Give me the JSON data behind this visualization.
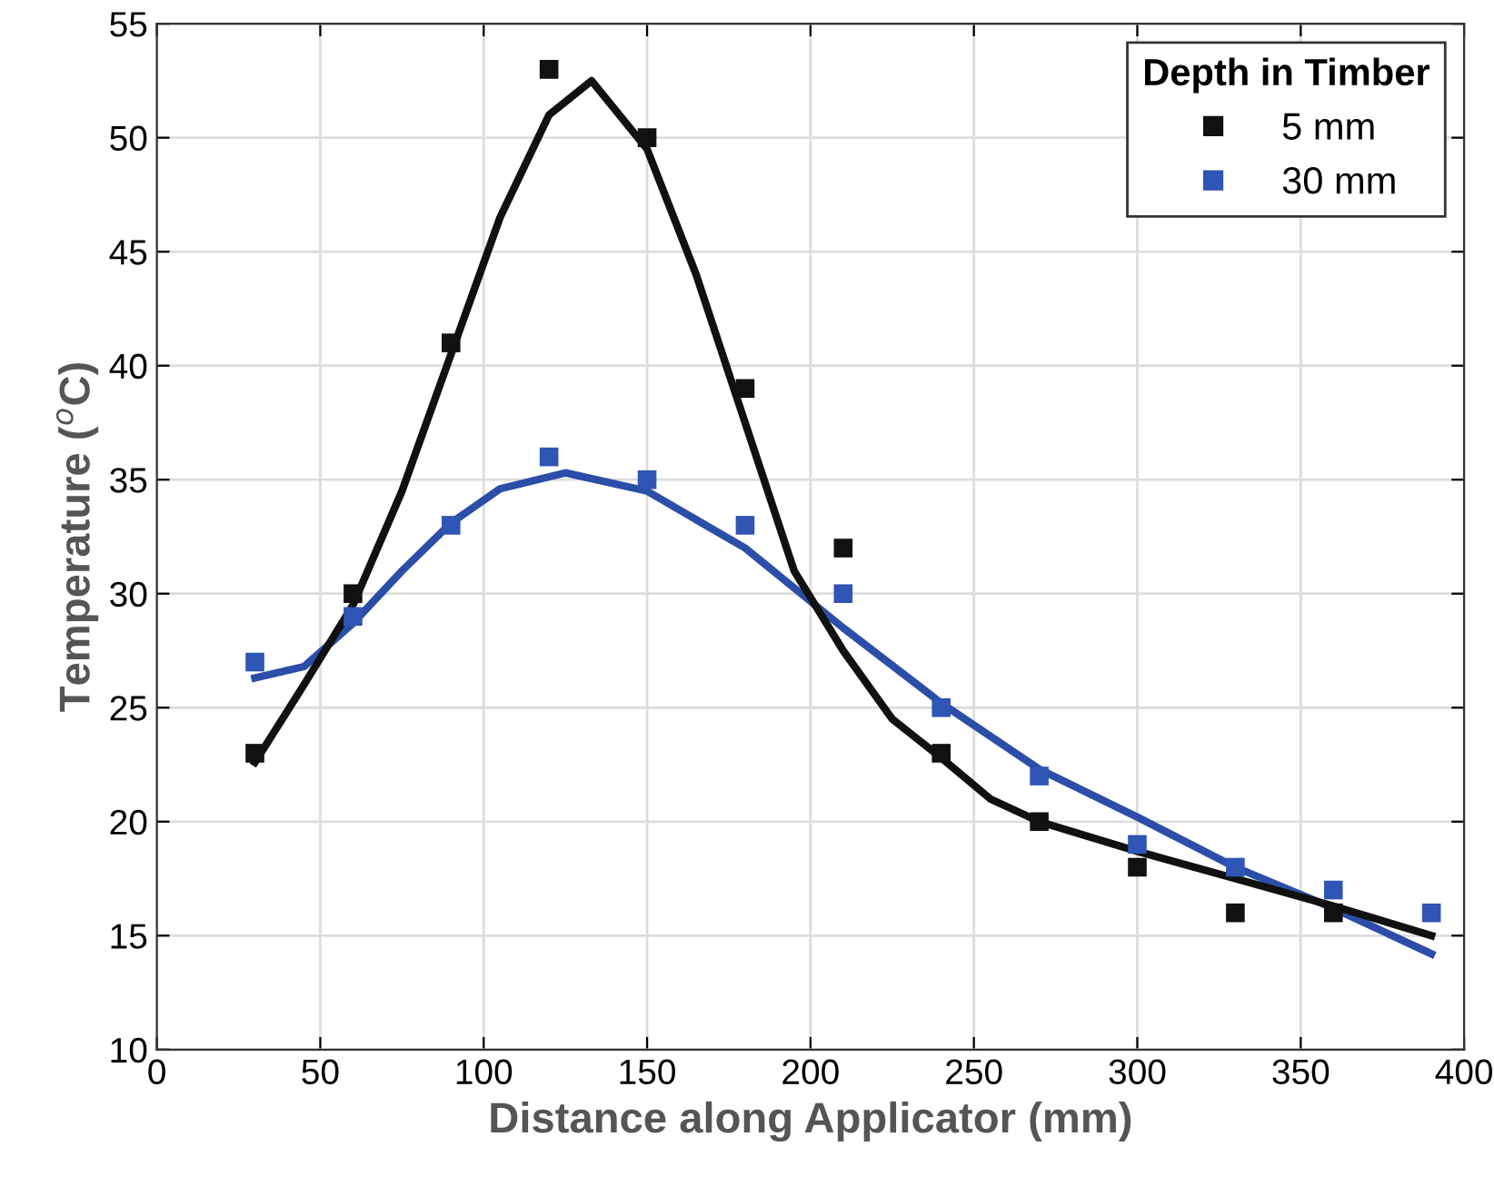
{
  "chart_data": {
    "type": "scatter",
    "xlabel": "Distance along Applicator (mm)",
    "ylabel": "Temperature ($^{o}$C)",
    "legend_title": "Depth in Timber",
    "legend": "top right",
    "grid": true,
    "marker": "square",
    "xlim": [
      0,
      400
    ],
    "ylim": [
      10,
      55
    ],
    "xticks": [
      0,
      50,
      100,
      150,
      200,
      250,
      300,
      350,
      400
    ],
    "yticks": [
      10,
      15,
      20,
      25,
      30,
      35,
      40,
      45,
      50,
      55
    ],
    "series": [
      {
        "type": "line",
        "color": "#2b4ea8",
        "x": [
          30,
          45,
          60,
          75,
          90,
          105,
          125,
          150,
          180,
          210,
          240,
          270,
          300,
          330,
          360,
          390
        ],
        "values": [
          26.3,
          26.8,
          28.7,
          31,
          33.1,
          34.6,
          35.3,
          34.5,
          32,
          28.5,
          25.2,
          22.3,
          20.2,
          18,
          16.2,
          14.2
        ],
        "marker": "none"
      },
      {
        "type": "line",
        "color": "#111111",
        "x": [
          30,
          45,
          60,
          75,
          90,
          105,
          120,
          133,
          150,
          165,
          180,
          195,
          210,
          225,
          240,
          255,
          270,
          300,
          330,
          360,
          390
        ],
        "values": [
          22.6,
          26,
          29.5,
          34.5,
          40.5,
          46.5,
          51,
          52.5,
          49.5,
          44,
          37.5,
          31,
          27.5,
          24.5,
          22.8,
          21,
          20,
          18.7,
          17.5,
          16.3,
          15
        ],
        "marker": "none"
      },
      {
        "name": "5 mm",
        "color": "#111111",
        "x": [
          30,
          60,
          90,
          120,
          150,
          180,
          210,
          240,
          270,
          300,
          330,
          360
        ],
        "values": [
          23,
          30,
          41,
          53,
          50,
          39,
          32,
          23,
          20,
          18,
          16,
          16
        ]
      },
      {
        "name": "30 mm",
        "color": "#2f55b5",
        "x": [
          30,
          60,
          90,
          120,
          150,
          180,
          210,
          240,
          270,
          300,
          330,
          360,
          390
        ],
        "values": [
          27,
          29,
          33,
          36,
          35,
          33,
          30,
          25,
          22,
          19,
          18,
          17,
          16
        ]
      }
    ]
  }
}
